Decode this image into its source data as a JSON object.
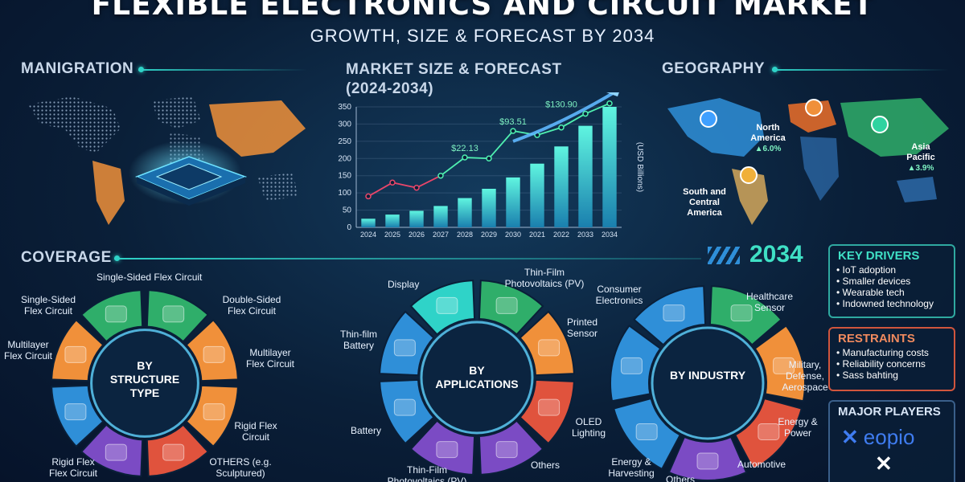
{
  "header": {
    "title": "FLEXIBLE ELECTRONICS AND CIRCUIT MARKET",
    "subtitle": "GROWTH, SIZE & FORECAST BY 2034"
  },
  "sections": {
    "manigration": "MANIGRATION",
    "market_size": "MARKET SIZE & FORECAST",
    "market_size_years": "(2024-2034)",
    "geography": "GEOGRAPHY",
    "coverage": "COVERAGE",
    "year": "2034"
  },
  "chart_data": {
    "type": "bar",
    "categories": [
      "2024",
      "2025",
      "2026",
      "2027",
      "2028",
      "2029",
      "2030",
      "2021",
      "2022",
      "2033",
      "2034"
    ],
    "values": [
      25,
      37,
      48,
      62,
      85,
      112,
      145,
      185,
      235,
      295,
      350
    ],
    "line_values": [
      90,
      130,
      115,
      150,
      203,
      200,
      280,
      268,
      290,
      330,
      360
    ],
    "annotations": [
      {
        "text": "$22.13",
        "x": "2028",
        "y": 203
      },
      {
        "text": "$93.51",
        "x": "2030",
        "y": 280
      },
      {
        "text": "$130.90",
        "x": "2022",
        "y": 330
      }
    ],
    "yticks": [
      0,
      50,
      100,
      150,
      200,
      250,
      300,
      350
    ],
    "ylim": [
      0,
      350
    ],
    "ylabel": "(USD Billions)",
    "colors": {
      "bar": "#2fd3c8",
      "line_early": "#e8466a",
      "line_late": "#4ff0b0"
    }
  },
  "geography": {
    "regions": [
      {
        "name": "North America",
        "growth": "▲6.0%"
      },
      {
        "name": "Asia Pacific",
        "growth": "▲3.9%"
      },
      {
        "name": "South and Central America",
        "growth": ""
      }
    ]
  },
  "wheels": {
    "structure": {
      "center": "BY STRUCTURE TYPE",
      "labels": [
        "Single-Sided Flex Circuit",
        "Double-Sided Flex Circuit",
        "Multilayer Flex Circuit",
        "Rigid Flex Circuit",
        "OTHERS (e.g. Sculptured)",
        "Rigid Flex Flex Circuit",
        "Multilayer Flex Circuit",
        "Single-Sided Flex Circuit"
      ]
    },
    "applications": {
      "center": "BY APPLICATIONS",
      "labels": [
        "Display",
        "Thin-Film Photovoltaics (PV)",
        "Printed Sensor",
        "OLED Lighting",
        "Others",
        "Thin-Film Photovoltaics (PV)",
        "Battery",
        "Thin-film Battery"
      ]
    },
    "industry": {
      "center": "BY INDUSTRY",
      "labels": [
        "Consumer Electronics",
        "Healthcare Sensor",
        "Military, Defense, Aerospace",
        "Energy & Power",
        "Automotive",
        "Others",
        "Energy & Harvesting"
      ]
    }
  },
  "panels": {
    "drivers": {
      "title": "KEY DRIVERS",
      "items": [
        "IoT adoption",
        "Smaller devices",
        "Wearable tech",
        "Indowned technology"
      ]
    },
    "restraints": {
      "title": "RESTRAINTS",
      "items": [
        "Manufacturing costs",
        "Reliability concerns",
        "Sass bahting"
      ]
    },
    "players": {
      "title": "MAJOR PLAYERS",
      "logo_text": "eopio"
    }
  },
  "colors": {
    "teal": "#2fd3c8",
    "orange": "#f0903a",
    "red": "#e0533d",
    "purple": "#7b4bc4",
    "blue": "#2f8fd8",
    "green": "#2fae6a"
  }
}
